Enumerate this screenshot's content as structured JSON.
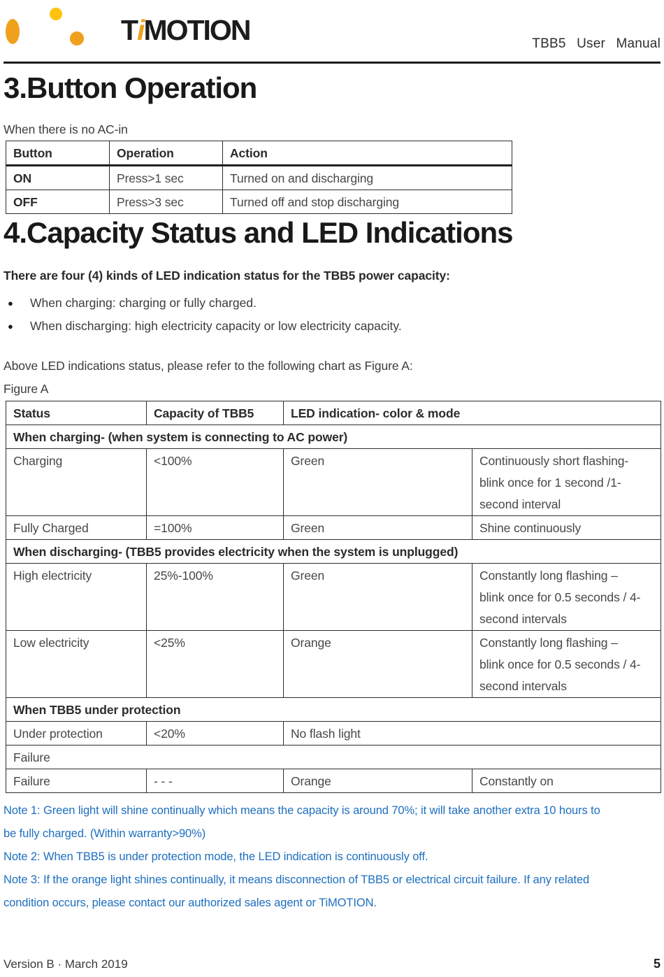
{
  "colors": {
    "logo_orange": "#efa11d",
    "logo_yellow": "#ffc30f",
    "note_blue": "#1e6fbf",
    "text_black": "#1c1c1c"
  },
  "header": {
    "brand_t": "T",
    "brand_i": "i",
    "brand_rest": "MOTION",
    "doc_title": "TBB5 User Manual"
  },
  "section3": {
    "title": "3.Button Operation",
    "intro": "When there is no AC-in",
    "table": {
      "headers": [
        "Button",
        "Operation",
        "Action"
      ],
      "rows": [
        {
          "cells": [
            "ON",
            "Press>1 sec",
            "Turned on and discharging"
          ]
        },
        {
          "cells": [
            "OFF",
            "Press>3 sec",
            "Turned off and stop discharging"
          ]
        }
      ]
    }
  },
  "section4": {
    "title": "4.Capacity Status and LED Indications",
    "lead": "There are four (4) kinds of LED indication status for the TBB5 power capacity:",
    "bullet_glyph": "●",
    "bullets": [
      "When charging: charging or fully charged.",
      "When discharging: high electricity capacity or low electricity capacity."
    ],
    "chart_ref": "Above LED indications status, please refer to the following chart as Figure A:",
    "figure_label": "Figure A",
    "figure_table": {
      "headers": [
        "Status",
        "Capacity of TBB5",
        "LED indication- color & mode"
      ],
      "rows": [
        {
          "type": "section",
          "label": "When charging- (when system is connecting to AC power)"
        },
        {
          "type": "data",
          "cells": [
            "Charging",
            "<100%",
            "Green",
            "Continuously short flashing-\nblink once for 1 second /1-second interval"
          ]
        },
        {
          "type": "data",
          "cells": [
            "Fully Charged",
            "=100%",
            "Green",
            "Shine continuously"
          ]
        },
        {
          "type": "section",
          "label": "When discharging- (TBB5 provides electricity when the system is unplugged)"
        },
        {
          "type": "data",
          "cells": [
            "High electricity",
            "25%-100%",
            "Green",
            "Constantly long flashing –\nblink once for 0.5 seconds / 4-second intervals"
          ]
        },
        {
          "type": "data",
          "cells": [
            "Low electricity",
            "<25%",
            "Orange",
            "Constantly long flashing –\nblink once for 0.5 seconds / 4-second intervals"
          ]
        },
        {
          "type": "section",
          "label": "When TBB5 under protection"
        },
        {
          "type": "data_merged",
          "cells": [
            "Under protection",
            "<20%",
            "No flash light"
          ]
        },
        {
          "type": "full",
          "label": "Failure"
        },
        {
          "type": "data",
          "cells": [
            "Failure",
            "- - -",
            "Orange",
            "Constantly on"
          ]
        }
      ]
    }
  },
  "notes": [
    "Note 1: Green light will shine continually which means the capacity is around 70%; it will take another extra 10 hours to\nbe fully charged. (Within warranty>90%)",
    "Note 2: When TBB5 is under protection mode, the LED indication is continuously off.",
    "Note 3: If the orange light shines continually, it means disconnection of TBB5 or electrical circuit failure. If any related\ncondition occurs, please contact our authorized sales agent or TiMOTION."
  ],
  "footer": {
    "version": "Version B · March 2019",
    "page": "5"
  }
}
